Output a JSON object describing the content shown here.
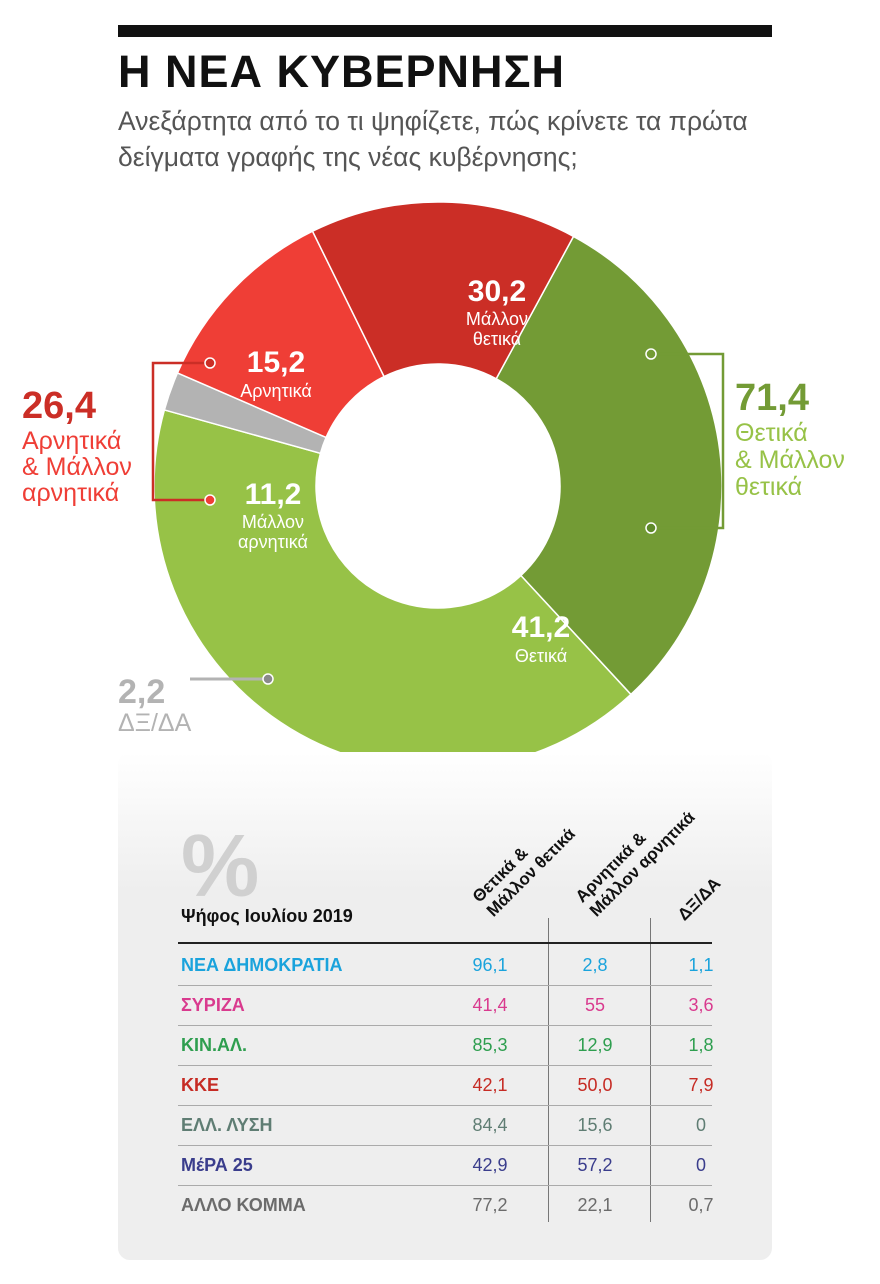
{
  "header": {
    "title": "Η ΝΕΑ ΚΥΒΕΡΝΗΣΗ",
    "subtitle": "Ανεξάρτητα από το τι ψηφίζετε, πώς κρίνετε τα πρώτα δείγματα γραφής της νέας κυβέρνησης;"
  },
  "chart_data": [
    {
      "type": "pie",
      "title": "Η ΝΕΑ ΚΥΒΕΡΝΗΣΗ",
      "subtitle": "Ανεξάρτητα από το τι ψηφίζετε, πώς κρίνετε τα πρώτα δείγματα γραφής της νέας κυβέρνησης;",
      "unit": "%",
      "slices": [
        {
          "value_label": "30,2",
          "label": "Μάλλον θετικά",
          "value": 30.2,
          "color": "#739b35"
        },
        {
          "value_label": "41,2",
          "label": "Θετικά",
          "value": 41.2,
          "color": "#97c247"
        },
        {
          "value_label": "2,2",
          "label": "ΔΞ/ΔΑ",
          "value": 2.2,
          "color": "#b3b3b3"
        },
        {
          "value_label": "11,2",
          "label": "Μάλλον αρνητικά",
          "value": 11.2,
          "color": "#ef3e36"
        },
        {
          "value_label": "15,2",
          "label": "Αρνητικά",
          "value": 15.2,
          "color": "#cb2e26"
        }
      ],
      "groups": [
        {
          "value_label": "71,4",
          "line1": "Θετικά",
          "line2": "& Μάλλον",
          "line3": "θετικά",
          "value": 71.4,
          "color": "#739b35"
        },
        {
          "value_label": "26,4",
          "line1": "Αρνητικά",
          "line2": "& Μάλλον",
          "line3": "αρνητικά",
          "value": 26.4,
          "color": "#cb2e26"
        }
      ]
    },
    {
      "type": "table",
      "title": "%",
      "row_header": "Ψήφος Ιουλίου 2019",
      "columns": [
        {
          "l1": "Θετικά &",
          "l2": "Μάλλον θετικά"
        },
        {
          "l1": "Αρνητικά &",
          "l2": "Μάλλον αρνητικά"
        },
        {
          "l1": "ΔΞ/ΔΑ",
          "l2": ""
        }
      ],
      "rows": [
        {
          "party": "ΝΕΑ ΔΗΜΟΚΡΑΤΙΑ",
          "color": "#1aa3dc",
          "values": [
            "96,1",
            "2,8",
            "1,1"
          ]
        },
        {
          "party": "ΣΥΡΙΖΑ",
          "color": "#d93a8e",
          "values": [
            "41,4",
            "55",
            "3,6"
          ]
        },
        {
          "party": "ΚΙΝ.ΑΛ.",
          "color": "#2e9e4f",
          "values": [
            "85,3",
            "12,9",
            "1,8"
          ]
        },
        {
          "party": "ΚΚΕ",
          "color": "#c62b24",
          "values": [
            "42,1",
            "50,0",
            "7,9"
          ]
        },
        {
          "party": "ΕΛΛ. ΛΥΣΗ",
          "color": "#5f7d73",
          "values": [
            "84,4",
            "15,6",
            "0"
          ]
        },
        {
          "party": "ΜέΡΑ 25",
          "color": "#3a3d8c",
          "values": [
            "42,9",
            "57,2",
            "0"
          ]
        },
        {
          "party": "ΑΛΛΟ ΚΟΜΜΑ",
          "color": "#6b6b6b",
          "values": [
            "77,2",
            "22,1",
            "0,7"
          ]
        }
      ]
    }
  ]
}
